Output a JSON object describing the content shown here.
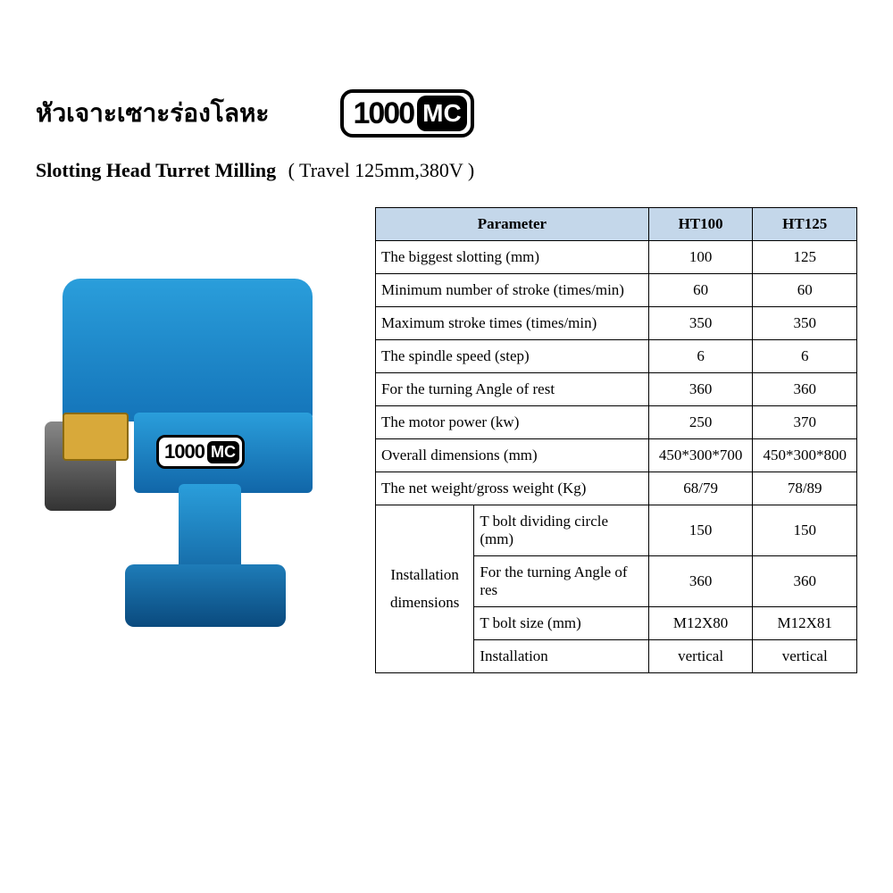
{
  "header": {
    "thai_title": "หัวเจาะเซาะร่องโลหะ",
    "brand_number": "1000",
    "brand_suffix": "MC"
  },
  "subtitle": {
    "bold": "Slotting Head Turret Milling",
    "paren": "( Travel 125mm,380V )"
  },
  "table": {
    "header_param": "Parameter",
    "col1": "HT100",
    "col2": "HT125",
    "header_bg": "#c4d7ea",
    "border_color": "#000000",
    "font_size": 17,
    "rows": [
      {
        "label": "The biggest slotting (mm)",
        "v1": "100",
        "v2": "125"
      },
      {
        "label": "Minimum number of stroke (times/min)",
        "v1": "60",
        "v2": "60"
      },
      {
        "label": "Maximum stroke times (times/min)",
        "v1": "350",
        "v2": "350"
      },
      {
        "label": "The spindle speed (step)",
        "v1": "6",
        "v2": "6"
      },
      {
        "label": "For the turning Angle of  rest",
        "v1": "360",
        "v2": "360"
      },
      {
        "label": "The motor power (kw)",
        "v1": "250",
        "v2": "370"
      },
      {
        "label": "Overall dimensions (mm)",
        "v1": "450*300*700",
        "v2": "450*300*800"
      },
      {
        "label": "The net weight/gross weight (Kg)",
        "v1": "68/79",
        "v2": "78/89"
      }
    ],
    "group_label": "Installation dimensions",
    "group_rows": [
      {
        "label": "T bolt dividing circle (mm)",
        "v1": "150",
        "v2": "150"
      },
      {
        "label": "For the turning Angle of  res",
        "v1": "360",
        "v2": "360"
      },
      {
        "label": "T bolt size (mm)",
        "v1": "M12X80",
        "v2": "M12X81"
      },
      {
        "label": "Installation",
        "v1": "vertical",
        "v2": "vertical"
      }
    ]
  },
  "image": {
    "machine_color": "#1e7cb8",
    "motor_color": "#555555",
    "switch_color": "#d8a93a"
  }
}
